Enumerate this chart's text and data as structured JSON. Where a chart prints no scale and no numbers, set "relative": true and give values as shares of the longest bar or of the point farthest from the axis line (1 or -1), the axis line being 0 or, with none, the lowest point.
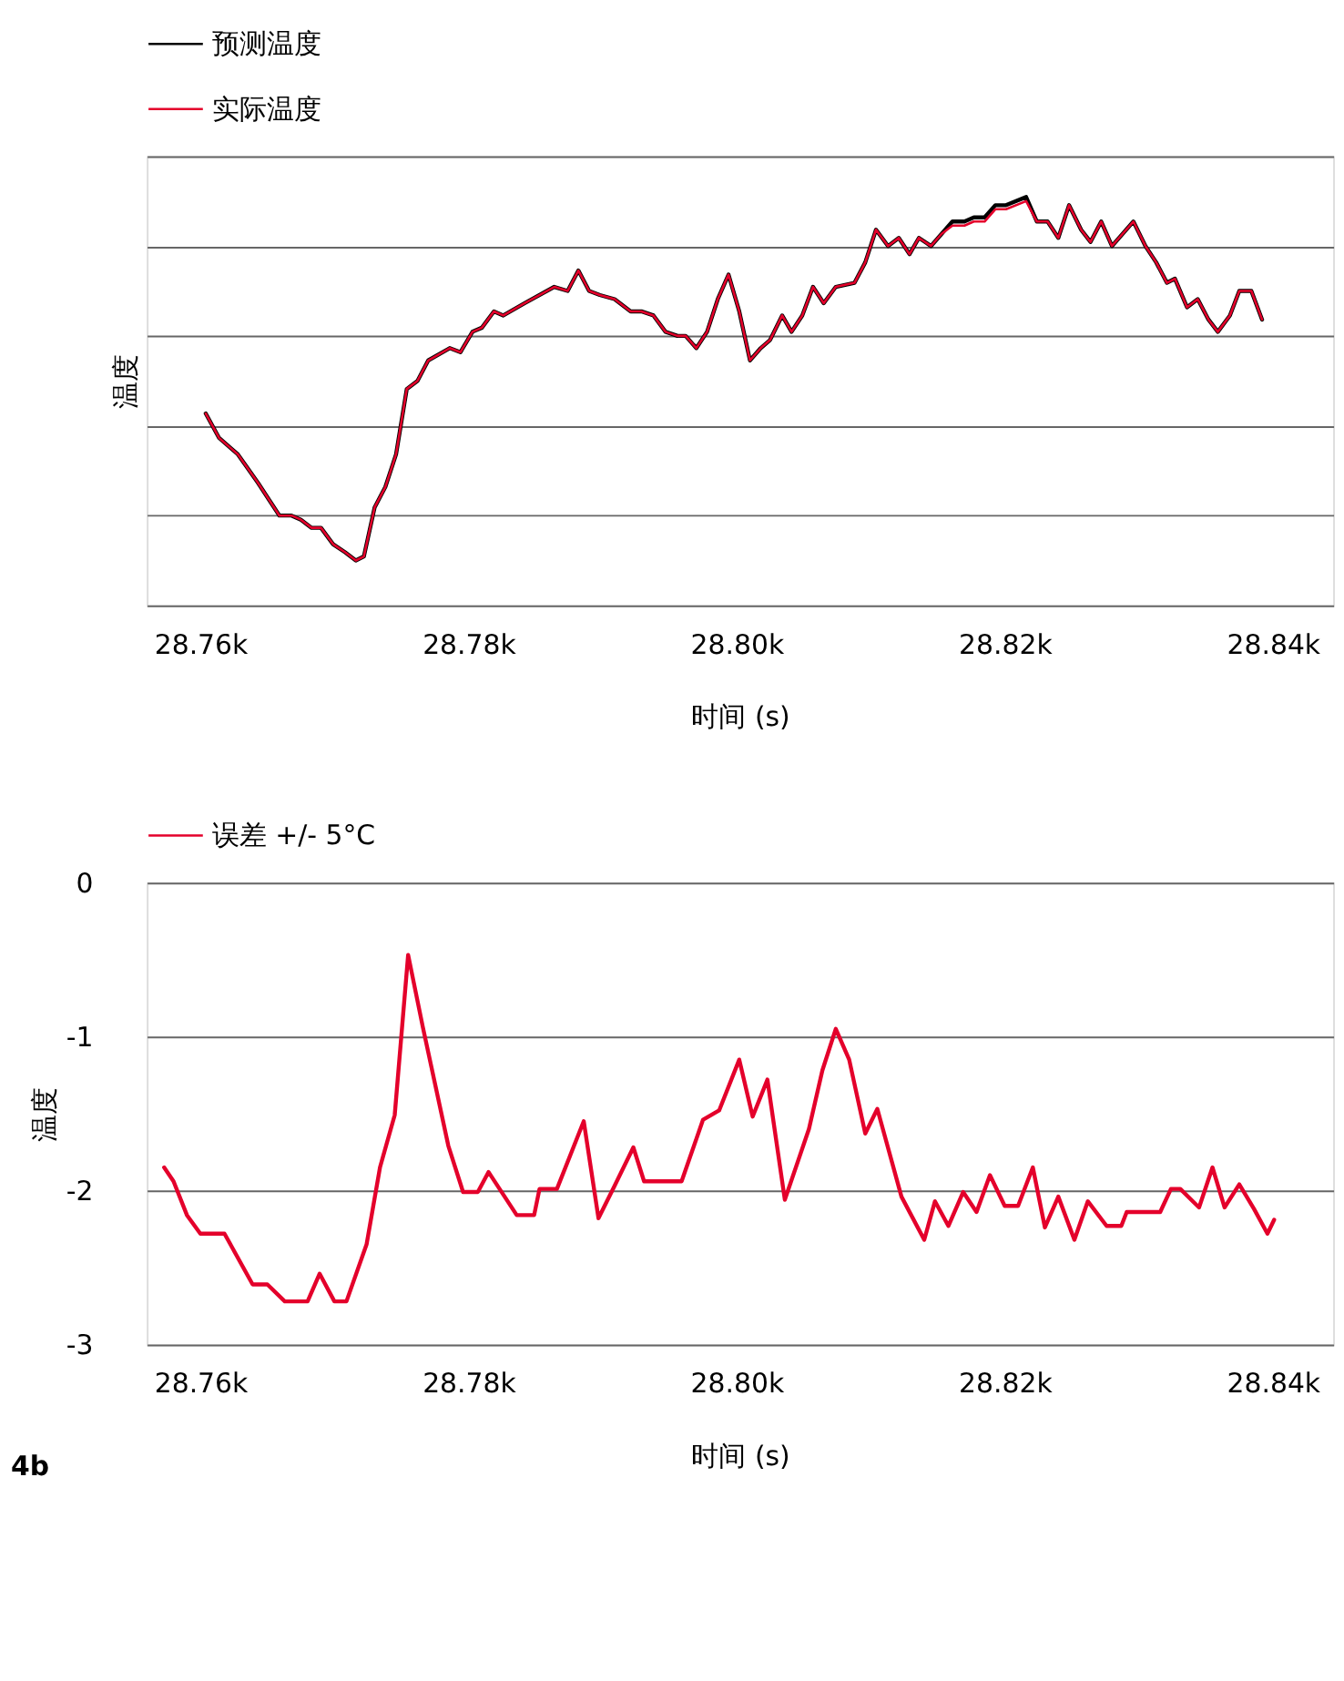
{
  "chart_data": [
    {
      "type": "line",
      "relative": true,
      "xlabel": "时间 (s)",
      "ylabel": "温度",
      "legend": "top",
      "grid": "y",
      "tick_labels": "x",
      "line_style": "solid",
      "marker": "none",
      "xlim": [
        28756,
        28844.5
      ],
      "xticks": [
        {
          "value": 28760,
          "label": "28.76k"
        },
        {
          "value": 28780,
          "label": "28.78k"
        },
        {
          "value": 28800,
          "label": "28.80k"
        },
        {
          "value": 28820,
          "label": "28.82k"
        },
        {
          "value": 28840,
          "label": "28.84k"
        }
      ],
      "x": [
        28760.4,
        28761.4,
        28762.8,
        28764.3,
        28765.9,
        28766.8,
        28767.5,
        28768.3,
        28769.0,
        28769.9,
        28770.8,
        28771.6,
        28772.2,
        28773.0,
        28773.8,
        28774.6,
        28775.4,
        28776.2,
        28777.0,
        28778.6,
        28779.4,
        28780.3,
        28781.0,
        28781.9,
        28782.6,
        28784.2,
        28786.4,
        28787.4,
        28788.2,
        28789.0,
        28789.8,
        28790.9,
        28792.1,
        28792.9,
        28793.8,
        28794.7,
        28795.6,
        28796.2,
        28797.0,
        28797.8,
        28798.6,
        28799.4,
        28800.2,
        28801.0,
        28801.8,
        28802.5,
        28803.4,
        28804.1,
        28804.9,
        28805.7,
        28806.5,
        28807.4,
        28808.8,
        28809.6,
        28810.4,
        28811.3,
        28812.1,
        28812.9,
        28813.6,
        28814.5,
        28815.3,
        28816.1,
        28817.0,
        28817.7,
        28818.5,
        28819.3,
        28820.1,
        28821.6,
        28822.4,
        28823.2,
        28824.0,
        28824.8,
        28825.7,
        28826.4,
        28827.2,
        28828.0,
        28829.6,
        28830.5,
        28831.3,
        28832.1,
        28832.7,
        28833.6,
        28834.4,
        28835.2,
        28835.9,
        28836.8,
        28837.5,
        28838.4,
        28839.2
      ],
      "series": [
        {
          "name": "预测温度",
          "color": "#000000",
          "values": [
            0.47,
            0.41,
            0.37,
            0.3,
            0.22,
            0.22,
            0.21,
            0.19,
            0.19,
            0.15,
            0.13,
            0.11,
            0.12,
            0.24,
            0.29,
            0.37,
            0.53,
            0.55,
            0.6,
            0.63,
            0.62,
            0.67,
            0.68,
            0.72,
            0.71,
            0.74,
            0.78,
            0.77,
            0.82,
            0.77,
            0.76,
            0.75,
            0.72,
            0.72,
            0.71,
            0.67,
            0.66,
            0.66,
            0.63,
            0.67,
            0.75,
            0.81,
            0.72,
            0.6,
            0.63,
            0.65,
            0.71,
            0.67,
            0.71,
            0.78,
            0.74,
            0.78,
            0.79,
            0.84,
            0.92,
            0.88,
            0.9,
            0.86,
            0.9,
            0.88,
            0.91,
            0.94,
            0.94,
            0.95,
            0.95,
            0.98,
            0.98,
            1.0,
            0.94,
            0.94,
            0.9,
            0.98,
            0.92,
            0.89,
            0.94,
            0.88,
            0.94,
            0.88,
            0.84,
            0.79,
            0.8,
            0.73,
            0.75,
            0.7,
            0.67,
            0.71,
            0.77,
            0.77,
            0.7
          ]
        },
        {
          "name": "实际温度",
          "color": "#e4002b",
          "values": [
            0.47,
            0.41,
            0.37,
            0.3,
            0.22,
            0.22,
            0.21,
            0.19,
            0.19,
            0.15,
            0.13,
            0.11,
            0.12,
            0.24,
            0.29,
            0.37,
            0.53,
            0.55,
            0.6,
            0.63,
            0.62,
            0.67,
            0.68,
            0.72,
            0.71,
            0.74,
            0.78,
            0.77,
            0.82,
            0.77,
            0.76,
            0.75,
            0.72,
            0.72,
            0.71,
            0.67,
            0.66,
            0.66,
            0.63,
            0.67,
            0.75,
            0.81,
            0.72,
            0.6,
            0.63,
            0.65,
            0.71,
            0.67,
            0.71,
            0.78,
            0.74,
            0.78,
            0.79,
            0.84,
            0.92,
            0.88,
            0.9,
            0.86,
            0.9,
            0.88,
            0.91,
            0.93,
            0.93,
            0.94,
            0.94,
            0.97,
            0.97,
            0.99,
            0.94,
            0.94,
            0.9,
            0.98,
            0.92,
            0.89,
            0.94,
            0.88,
            0.94,
            0.88,
            0.84,
            0.79,
            0.8,
            0.73,
            0.75,
            0.7,
            0.67,
            0.71,
            0.77,
            0.77,
            0.7
          ]
        }
      ]
    },
    {
      "type": "line",
      "xlabel": "时间 (s)",
      "ylabel": "温度",
      "legend": "top",
      "grid": "y",
      "line_style": "solid",
      "marker": "none",
      "annotations": [
        "4b"
      ],
      "xlim": [
        28756,
        28844.5
      ],
      "xticks": [
        {
          "value": 28760,
          "label": "28.76k"
        },
        {
          "value": 28780,
          "label": "28.78k"
        },
        {
          "value": 28800,
          "label": "28.80k"
        },
        {
          "value": 28820,
          "label": "28.82k"
        },
        {
          "value": 28840,
          "label": "28.84k"
        }
      ],
      "ylim": [
        -3,
        0
      ],
      "yticks": [
        -3,
        -2,
        -1,
        0
      ],
      "x": [
        28757.3,
        28758.0,
        28759.0,
        28760.0,
        28761.8,
        28763.9,
        28765.0,
        28766.3,
        28768.0,
        28768.9,
        28770.0,
        28770.9,
        28772.4,
        28773.4,
        28774.5,
        28775.5,
        28776.6,
        28778.5,
        28779.6,
        28780.7,
        28781.5,
        28783.6,
        28784.9,
        28785.3,
        28786.6,
        28788.6,
        28789.7,
        28790.9,
        28792.3,
        28793.1,
        28795.9,
        28797.5,
        28798.7,
        28800.2,
        28801.2,
        28802.3,
        28803.6,
        28805.4,
        28806.4,
        28807.4,
        28808.4,
        28809.6,
        28810.5,
        28812.3,
        28814.0,
        28814.8,
        28815.8,
        28816.9,
        28817.9,
        28818.9,
        28820.0,
        28821.0,
        28822.1,
        28823.0,
        28824.0,
        28825.2,
        28826.2,
        28827.6,
        28828.7,
        28829.1,
        28831.6,
        28832.4,
        28833.1,
        28834.5,
        28835.5,
        28836.4,
        28837.5,
        28838.6,
        28839.6,
        28840.1
      ],
      "series": [
        {
          "name": "误差 +/- 5°C",
          "color": "#e4002b",
          "values": [
            -1.85,
            -1.94,
            -2.16,
            -2.28,
            -2.28,
            -2.61,
            -2.61,
            -2.72,
            -2.72,
            -2.54,
            -2.72,
            -2.72,
            -2.35,
            -1.85,
            -1.51,
            -0.47,
            -0.94,
            -1.71,
            -2.01,
            -2.01,
            -1.88,
            -2.16,
            -2.16,
            -1.99,
            -1.99,
            -1.55,
            -2.18,
            -1.97,
            -1.72,
            -1.94,
            -1.94,
            -1.54,
            -1.48,
            -1.15,
            -1.52,
            -1.28,
            -2.06,
            -1.6,
            -1.22,
            -0.95,
            -1.15,
            -1.63,
            -1.47,
            -2.04,
            -2.32,
            -2.07,
            -2.23,
            -2.01,
            -2.14,
            -1.9,
            -2.1,
            -2.1,
            -1.85,
            -2.24,
            -2.04,
            -2.32,
            -2.07,
            -2.23,
            -2.23,
            -2.14,
            -2.14,
            -1.99,
            -1.99,
            -2.11,
            -1.85,
            -2.11,
            -1.96,
            -2.12,
            -2.28,
            -2.19
          ]
        }
      ]
    }
  ]
}
